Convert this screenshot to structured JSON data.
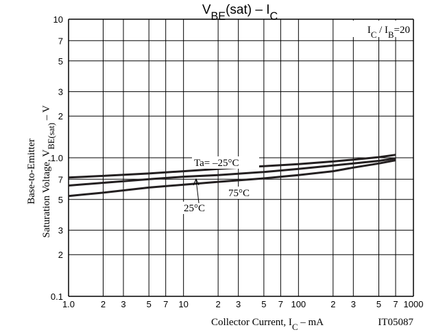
{
  "chart_data": {
    "type": "line",
    "title": [
      "V",
      "BE",
      "(sat)  –  I",
      "C"
    ],
    "y_label": [
      "Base-to-Emitter",
      [
        "Saturation Voltage, V",
        "BE(sat)",
        "  –  V"
      ]
    ],
    "x_label": [
      "Collector Current, I",
      "C",
      "  –  mA"
    ],
    "annotations": [
      [
        "I",
        "C",
        " / I",
        "B",
        "=20"
      ],
      "IT05087"
    ],
    "log_x": true,
    "log_y": true,
    "grid": true,
    "x": [
      1,
      2,
      5,
      10,
      20,
      50,
      100,
      200,
      300,
      500,
      700
    ],
    "series": [
      {
        "name": "Ta= –25°C",
        "color": "#231f20",
        "values": [
          0.72,
          0.74,
          0.77,
          0.8,
          0.83,
          0.87,
          0.9,
          0.94,
          0.97,
          1.01,
          1.05
        ]
      },
      {
        "name": "25°C",
        "color": "#231f20",
        "values": [
          0.63,
          0.66,
          0.7,
          0.73,
          0.75,
          0.79,
          0.83,
          0.88,
          0.91,
          0.95,
          0.99
        ]
      },
      {
        "name": "75°C",
        "color": "#231f20",
        "values": [
          0.53,
          0.56,
          0.61,
          0.64,
          0.67,
          0.71,
          0.75,
          0.8,
          0.85,
          0.91,
          0.96
        ]
      }
    ],
    "xlim": [
      1,
      1000
    ],
    "xticks": [
      {
        "value": 1,
        "label": "1.0"
      },
      2,
      3,
      5,
      7,
      10,
      2,
      3,
      5,
      7,
      100,
      2,
      3,
      5,
      7,
      1000
    ],
    "ylim": [
      0.1,
      10
    ],
    "yticks": [
      0.1,
      {
        "value": 0.2,
        "label": "2"
      },
      {
        "value": 0.3,
        "label": "3"
      },
      {
        "value": 0.5,
        "label": "5"
      },
      {
        "value": 0.7,
        "label": "7"
      },
      {
        "value": 1,
        "label": "1.0"
      },
      2,
      3,
      5,
      7,
      10
    ]
  }
}
